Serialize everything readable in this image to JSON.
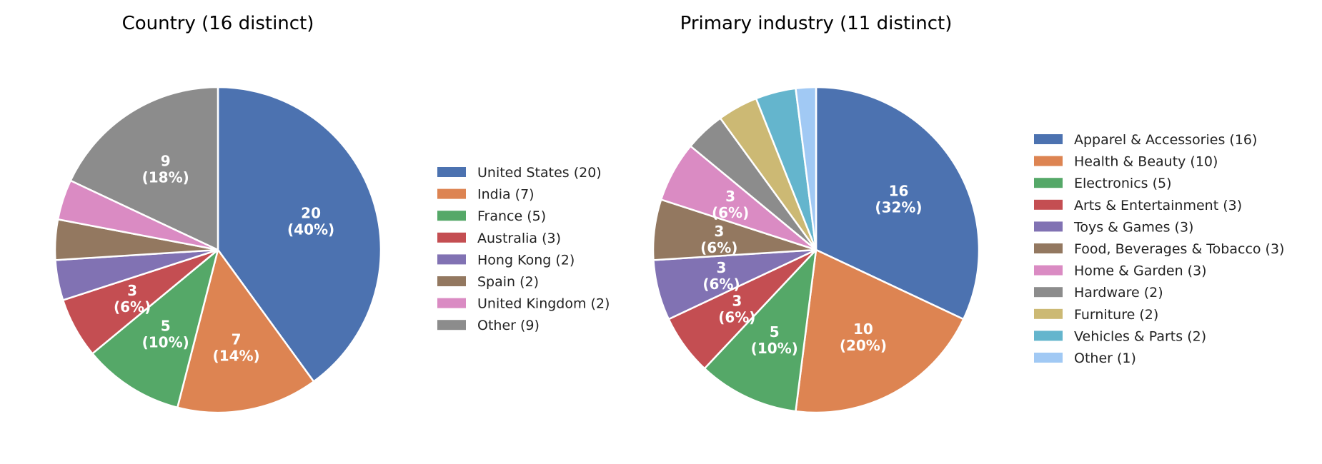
{
  "chart_data": [
    {
      "type": "pie",
      "title": "Country (16 distinct)",
      "slices": [
        {
          "name": "United States",
          "value": 20,
          "count_label": "(20)",
          "label": "20",
          "pct_label": "(40%)",
          "color": "#4c72b0"
        },
        {
          "name": "India",
          "value": 7,
          "count_label": "(7)",
          "label": "7",
          "pct_label": "(14%)",
          "color": "#dd8452"
        },
        {
          "name": "France",
          "value": 5,
          "count_label": "(5)",
          "label": "5",
          "pct_label": "(10%)",
          "color": "#55a868"
        },
        {
          "name": "Australia",
          "value": 3,
          "count_label": "(3)",
          "label": "3",
          "pct_label": "(6%)",
          "color": "#c44e52"
        },
        {
          "name": "Hong Kong",
          "value": 2,
          "count_label": "(2)",
          "label": "",
          "pct_label": "",
          "color": "#8172b3"
        },
        {
          "name": "Spain",
          "value": 2,
          "count_label": "(2)",
          "label": "",
          "pct_label": "",
          "color": "#937860"
        },
        {
          "name": "United Kingdom",
          "value": 2,
          "count_label": "(2)",
          "label": "",
          "pct_label": "",
          "color": "#da8bc3"
        },
        {
          "name": "Other",
          "value": 9,
          "count_label": "(9)",
          "label": "9",
          "pct_label": "(18%)",
          "color": "#8c8c8c"
        }
      ]
    },
    {
      "type": "pie",
      "title": "Primary industry (11 distinct)",
      "slices": [
        {
          "name": "Apparel & Accessories",
          "value": 16,
          "count_label": "(16)",
          "label": "16",
          "pct_label": "(32%)",
          "color": "#4c72b0"
        },
        {
          "name": "Health & Beauty",
          "value": 10,
          "count_label": "(10)",
          "label": "10",
          "pct_label": "(20%)",
          "color": "#dd8452"
        },
        {
          "name": "Electronics",
          "value": 5,
          "count_label": "(5)",
          "label": "5",
          "pct_label": "(10%)",
          "color": "#55a868"
        },
        {
          "name": "Arts & Entertainment",
          "value": 3,
          "count_label": "(3)",
          "label": "3",
          "pct_label": "(6%)",
          "color": "#c44e52"
        },
        {
          "name": "Toys & Games",
          "value": 3,
          "count_label": "(3)",
          "label": "3",
          "pct_label": "(6%)",
          "color": "#8172b3"
        },
        {
          "name": "Food, Beverages & Tobacco",
          "value": 3,
          "count_label": "(3)",
          "label": "3",
          "pct_label": "(6%)",
          "color": "#937860"
        },
        {
          "name": "Home & Garden",
          "value": 3,
          "count_label": "(3)",
          "label": "3",
          "pct_label": "(6%)",
          "color": "#da8bc3"
        },
        {
          "name": "Hardware",
          "value": 2,
          "count_label": "(2)",
          "label": "",
          "pct_label": "",
          "color": "#8c8c8c"
        },
        {
          "name": "Furniture",
          "value": 2,
          "count_label": "(2)",
          "label": "",
          "pct_label": "",
          "color": "#ccb974"
        },
        {
          "name": "Vehicles & Parts",
          "value": 2,
          "count_label": "(2)",
          "label": "",
          "pct_label": "",
          "color": "#64b5cd"
        },
        {
          "name": "Other",
          "value": 1,
          "count_label": "(1)",
          "label": "",
          "pct_label": "",
          "color": "#a1c9f4"
        }
      ]
    }
  ]
}
